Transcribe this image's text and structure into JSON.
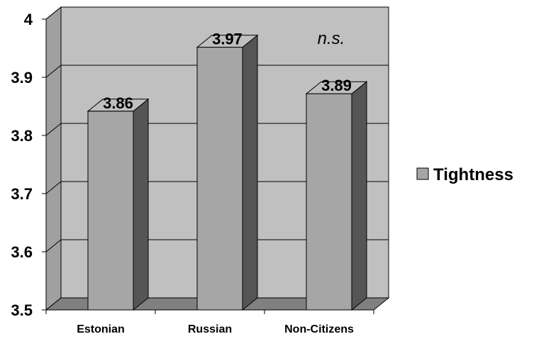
{
  "chart_data": {
    "type": "bar",
    "categories": [
      "Estonian",
      "Russian",
      "Non-Citizens"
    ],
    "series": [
      {
        "name": "Tightness",
        "values": [
          3.86,
          3.97,
          3.89
        ]
      }
    ],
    "data_labels": [
      "3.86",
      "3.97",
      "3.89"
    ],
    "ylim": [
      3.5,
      4
    ],
    "yticks": [
      "3.5",
      "3.6",
      "3.7",
      "3.8",
      "3.9",
      "4"
    ],
    "annotation": "n.s.",
    "grid": true,
    "legend": {
      "position": "right",
      "label": "Tightness"
    },
    "style": "3d",
    "colors": {
      "bar_front": "#a6a6a6",
      "bar_side": "#555555",
      "bar_top": "#bfbfbf",
      "back_wall": "#c0c0c0",
      "side_wall": "#a0a0a0",
      "floor": "#808080"
    }
  }
}
